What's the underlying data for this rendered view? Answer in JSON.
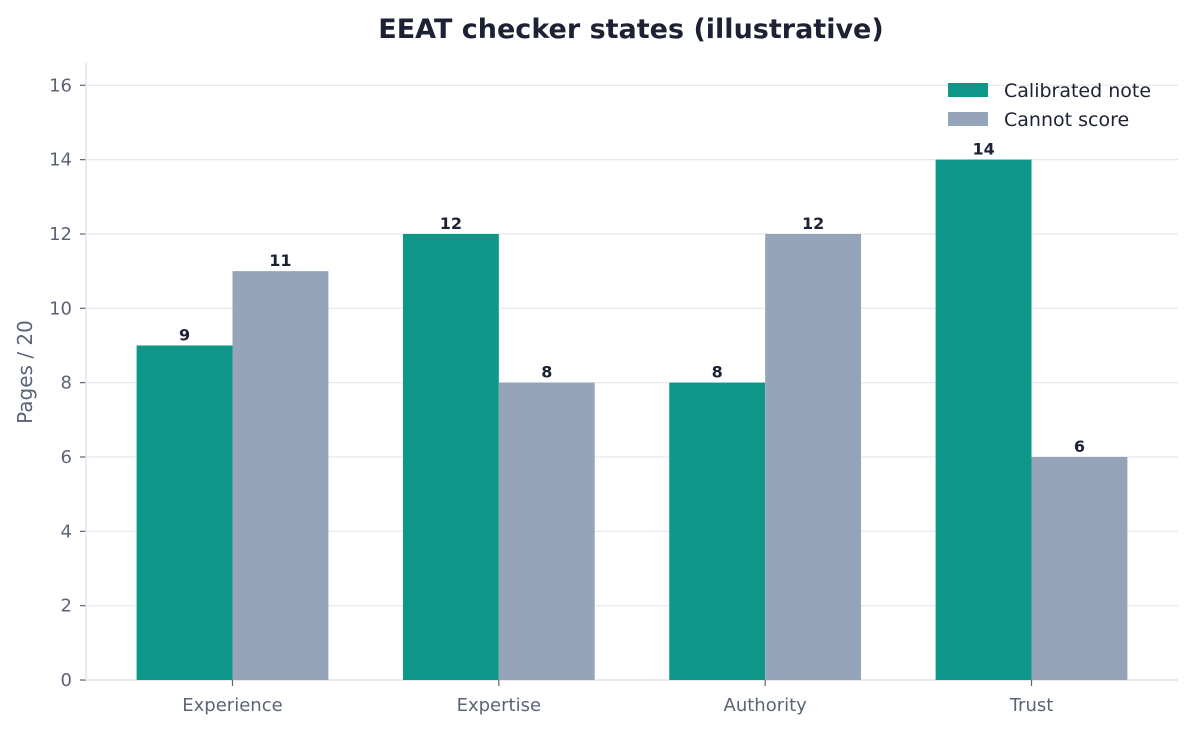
{
  "chart_data": {
    "type": "bar",
    "title": "EEAT checker states (illustrative)",
    "xlabel": "",
    "ylabel": "Pages / 20",
    "categories": [
      "Experience",
      "Expertise",
      "Authority",
      "Trust"
    ],
    "series": [
      {
        "name": "Calibrated note",
        "values": [
          9,
          12,
          8,
          14
        ],
        "color": "#0e9688"
      },
      {
        "name": "Cannot score",
        "values": [
          11,
          8,
          12,
          6
        ],
        "color": "#95a4b8"
      }
    ],
    "ylim": [
      0,
      16.6
    ],
    "yticks": [
      0,
      2,
      4,
      6,
      8,
      10,
      12,
      14,
      16
    ],
    "grid": true,
    "legend_position": "top-right",
    "data_labels": true
  }
}
